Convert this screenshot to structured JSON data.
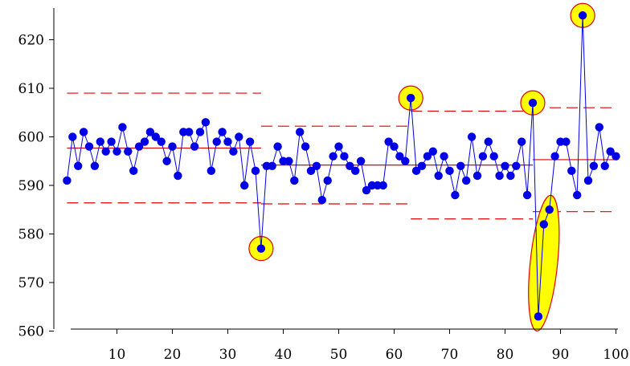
{
  "chart_data": {
    "type": "line",
    "title": "",
    "xlabel": "",
    "ylabel": "",
    "xlim": [
      0,
      100
    ],
    "ylim": [
      560,
      627
    ],
    "x_ticks": [
      10,
      20,
      30,
      40,
      50,
      60,
      70,
      80,
      90,
      100
    ],
    "y_ticks": [
      560,
      570,
      580,
      590,
      600,
      610,
      620
    ],
    "series": [
      {
        "x": [
          1,
          2,
          3,
          4,
          5,
          6,
          7,
          8,
          9,
          10,
          11,
          12,
          13,
          14,
          15,
          16,
          17,
          18,
          19,
          20,
          21,
          22,
          23,
          24,
          25,
          26,
          27,
          28,
          29,
          30,
          31,
          32,
          33,
          34,
          35,
          36,
          37,
          38,
          39,
          40,
          41,
          42,
          43,
          44,
          45,
          46,
          47,
          48,
          49,
          50,
          51,
          52,
          53,
          54,
          55,
          56,
          57,
          58,
          59,
          60,
          61,
          62,
          63,
          64,
          65,
          66,
          67,
          68,
          69,
          70,
          71,
          72,
          73,
          74,
          75,
          76,
          77,
          78,
          79,
          80,
          81,
          82,
          83,
          84,
          85,
          86,
          87,
          88,
          89,
          90,
          91,
          92,
          93,
          94,
          95,
          96,
          97,
          98,
          99,
          100
        ],
        "y": [
          591,
          600,
          594,
          601,
          598,
          594,
          599,
          597,
          599,
          597,
          602,
          597,
          593,
          598,
          599,
          601,
          600,
          599,
          595,
          598,
          592,
          601,
          601,
          598,
          601,
          603,
          593,
          599,
          601,
          599,
          597,
          600,
          590,
          599,
          593,
          577,
          594,
          594,
          598,
          595,
          595,
          591,
          601,
          598,
          593,
          594,
          587,
          591,
          596,
          598,
          596,
          594,
          593,
          595,
          589,
          590,
          590,
          590,
          599,
          598,
          596,
          595,
          608,
          593,
          594,
          596,
          597,
          592,
          596,
          593,
          588,
          594,
          591,
          600,
          592,
          596,
          599,
          596,
          592,
          594,
          592,
          594,
          599,
          588,
          607,
          563,
          582,
          585,
          596,
          599,
          599,
          593,
          588,
          625,
          591,
          594,
          602,
          594,
          597,
          596
        ],
        "color": "#0000e6"
      }
    ],
    "segments": [
      {
        "x_range": [
          1,
          36
        ],
        "center": 597.7,
        "ucl": 609.0,
        "lcl": 586.4
      },
      {
        "x_range": [
          36,
          63
        ],
        "center": 594.2,
        "ucl": 602.2,
        "lcl": 586.2
      },
      {
        "x_range": [
          63,
          85
        ],
        "center": 594.2,
        "ucl": 605.3,
        "lcl": 583.1
      },
      {
        "x_range": [
          85,
          100
        ],
        "center": 595.3,
        "ucl": 606.0,
        "lcl": 584.6
      }
    ],
    "highlighted_points": [
      36,
      63,
      85,
      94
    ],
    "highlighted_range": [
      86,
      88
    ],
    "colors": {
      "line": "#0000e6",
      "marker": "#0000e6",
      "limit_line": "#e00000",
      "highlight_fill": "#ffff00",
      "highlight_stroke": "#e00000"
    }
  }
}
